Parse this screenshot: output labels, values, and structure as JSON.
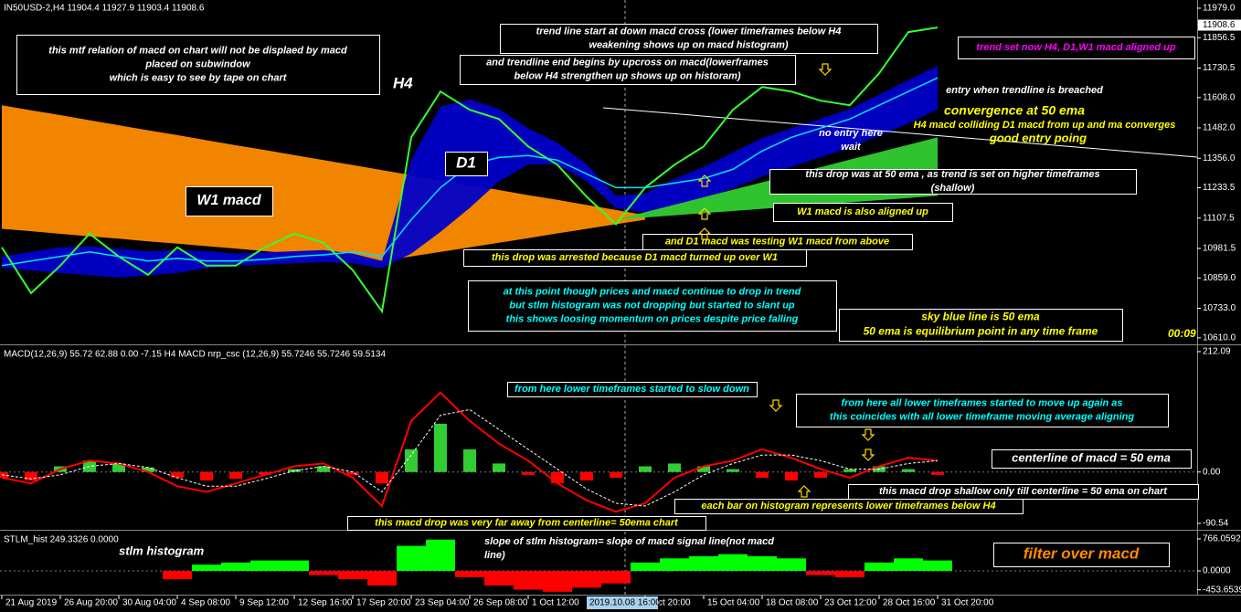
{
  "chart_data": [
    {
      "type": "line",
      "title": "IN50USD-2,H4  11904.4 11927.9 11903.4 11908.6",
      "ylim": [
        10587,
        12013
      ],
      "yticks": [
        {
          "value": 11979,
          "label": "11979.0"
        },
        11856.5,
        11730.5,
        {
          "value": 11608,
          "label": "11608.0"
        },
        {
          "value": 11482,
          "label": "11482.0"
        },
        {
          "value": 11356,
          "label": "11356.0"
        },
        11233.5,
        11107.5,
        10981.5,
        {
          "value": 10859,
          "label": "10859.0"
        },
        {
          "value": 10733,
          "label": "10733.0"
        },
        {
          "value": 10610,
          "label": "10610.0"
        }
      ],
      "last_price": 11908.6,
      "bands": [
        {
          "color": "#ff8c00",
          "upper": [
            11576,
            11555,
            11535,
            11514,
            11493,
            11472,
            11452,
            11431,
            11410,
            11390,
            11369,
            11348,
            11328,
            11307,
            11286,
            11265,
            11245,
            11224,
            11203,
            11183,
            11162,
            11141,
            11120,
            null,
            null,
            null,
            null,
            null,
            null,
            null,
            null,
            null,
            null
          ],
          "lower": [
            11063,
            11053,
            11042,
            11032,
            11022,
            11011,
            11001,
            10991,
            10981,
            10970,
            10960,
            10950,
            10939,
            10929,
            10948,
            10967,
            10986,
            11005,
            11024,
            11044,
            11063,
            11082,
            11101,
            null,
            null,
            null,
            null,
            null,
            null,
            null,
            null,
            null,
            null
          ]
        },
        {
          "color": "#0000c8",
          "upper": [
            10948,
            10967,
            10986,
            10990,
            10980,
            10970,
            10975,
            10970,
            10960,
            10965,
            10970,
            10975,
            10960,
            10930,
            11350,
            11570,
            11600,
            11560,
            11480,
            11420,
            11330,
            11200,
            11210,
            11270,
            11320,
            11380,
            11440,
            11480,
            11520,
            11560,
            11620,
            11680,
            11740
          ],
          "lower": [
            10900,
            10890,
            10880,
            10870,
            10860,
            10870,
            10880,
            10900,
            10910,
            10915,
            10920,
            10925,
            10920,
            10900,
            10960,
            11050,
            11150,
            11260,
            11330,
            11330,
            11260,
            11150,
            11130,
            11150,
            11190,
            11230,
            11280,
            11320,
            11360,
            11400,
            11450,
            11500,
            11560
          ]
        },
        {
          "color": "#32cd32",
          "upper": [
            null,
            null,
            null,
            null,
            null,
            null,
            null,
            null,
            null,
            null,
            null,
            null,
            null,
            null,
            null,
            null,
            null,
            null,
            null,
            null,
            null,
            11101,
            11132,
            11163,
            11194,
            11225,
            11256,
            11288,
            11319,
            11350,
            11381,
            11412,
            11443
          ],
          "lower": [
            null,
            null,
            null,
            null,
            null,
            null,
            null,
            null,
            null,
            null,
            null,
            null,
            null,
            null,
            null,
            null,
            null,
            null,
            null,
            null,
            null,
            11101,
            11110,
            11119,
            11128,
            11137,
            11146,
            11155,
            11164,
            11173,
            11182,
            11191,
            11200
          ]
        }
      ],
      "series": [
        {
          "color": "#33ff33",
          "values": [
            10986,
            10796,
            10910,
            11043,
            10948,
            10872,
            10986,
            10910,
            10910,
            10986,
            11043,
            11005,
            10891,
            10720,
            11443,
            11633,
            11557,
            11519,
            11405,
            11329,
            11196,
            11082,
            11234,
            11329,
            11405,
            11557,
            11652,
            11633,
            11595,
            11576,
            11709,
            11880,
            11899
          ]
        },
        {
          "color": "#00e5ee",
          "values": [
            10910,
            10929,
            10948,
            10967,
            10948,
            10929,
            10940,
            10929,
            10929,
            10936,
            10948,
            10955,
            10967,
            10948,
            11101,
            11234,
            11329,
            11359,
            11367,
            11348,
            11291,
            11234,
            11234,
            11253,
            11272,
            11310,
            11386,
            11443,
            11481,
            11519,
            11576,
            11633,
            11690
          ]
        }
      ],
      "clock": "00:09"
    },
    {
      "type": "macd",
      "title": "MACD(12,26,9) 55.72 62.88 0.00 -7.15  H4 MACD nrp_csc (12,26,9) 55.7246 55.7246 59.5134",
      "ylim": [
        -98.6,
        221.7
      ],
      "yticks": [
        212.09,
        {
          "value": 0,
          "label": "0.00"
        },
        -90.54
      ],
      "histogram": {
        "colors": {
          "up": "#32cd32",
          "down": "#ff0000"
        },
        "values": [
          -10,
          -15,
          10,
          20,
          15,
          8,
          -10,
          -15,
          -12,
          -5,
          5,
          10,
          -5,
          -20,
          40,
          85,
          40,
          15,
          -5,
          -20,
          -15,
          -10,
          10,
          15,
          10,
          5,
          -10,
          -15,
          -10,
          5,
          10,
          5,
          -5
        ]
      },
      "series": [
        {
          "color": "#ff0000",
          "values": [
            -10,
            -20,
            5,
            20,
            15,
            0,
            -25,
            -35,
            -20,
            -5,
            10,
            15,
            -10,
            -60,
            90,
            140,
            90,
            50,
            20,
            -20,
            -50,
            -70,
            -55,
            -10,
            10,
            20,
            40,
            25,
            5,
            -10,
            10,
            25,
            20
          ]
        },
        {
          "color": "#ffffff",
          "values": [
            -5,
            -12,
            -5,
            10,
            15,
            8,
            -10,
            -25,
            -25,
            -12,
            2,
            10,
            0,
            -35,
            30,
            100,
            110,
            75,
            40,
            5,
            -30,
            -55,
            -60,
            -35,
            -5,
            15,
            30,
            30,
            20,
            5,
            5,
            15,
            20
          ]
        }
      ]
    },
    {
      "type": "bar",
      "title": "STLM_hist 249.3326 0.0000",
      "ylim": [
        -547,
        941
      ],
      "yticks": [
        766.0592,
        {
          "value": 0,
          "label": "0.0000"
        },
        -453.6539
      ],
      "colors": {
        "up": "#00ff00",
        "down": "#ff0000"
      },
      "categories": [
        "21 Aug 2019",
        null,
        "26 Aug 20:00",
        null,
        "30 Aug 04:00",
        null,
        "4 Sep 08:00",
        null,
        "9 Sep 12:00",
        null,
        "12 Sep 16:00",
        null,
        "17 Sep 20:00",
        null,
        "23 Sep 04:00",
        null,
        "26 Sep 08:00",
        null,
        "1 Oct 12:00",
        null,
        "2019.10.08 16:00",
        null,
        "ct 20:00",
        null,
        "15 Oct 04:00",
        null,
        "18 Oct 08:00",
        null,
        "23 Oct 12:00",
        null,
        "28 Oct 16:00",
        null,
        "31 Oct 20:00"
      ],
      "values": [
        null,
        null,
        null,
        null,
        null,
        null,
        -200,
        150,
        200,
        250,
        250,
        -100,
        -200,
        -350,
        600,
        750,
        -150,
        -350,
        -450,
        -500,
        -400,
        -300,
        200,
        300,
        350,
        400,
        350,
        300,
        -100,
        -150,
        200,
        300,
        250
      ]
    }
  ],
  "annotations": [
    {
      "color": "#ffffff",
      "lines": [
        "this mtf relation of macd on chart will not be displaed by macd",
        "placed on subwindow",
        "which is easy to see by tape on chart"
      ]
    },
    {
      "color": "#ffffff",
      "lines": [
        "H4"
      ]
    },
    {
      "color": "#ffffff",
      "lines": [
        "D1"
      ]
    },
    {
      "color": "#ffffff",
      "lines": [
        "W1  macd"
      ]
    },
    {
      "color": "#ffffff",
      "lines": [
        "trend line start at down macd cross (lower timeframes  below H4",
        "weakening shows up on macd histogram)"
      ]
    },
    {
      "color": "#ffffff",
      "lines": [
        "and trendline end begins by upcross on macd(lowerframes",
        "below H4 strengthen up shows up on historam)"
      ]
    },
    {
      "color": "#ff00ff",
      "lines": [
        "trend set now H4, D1,W1 macd aligned up"
      ]
    },
    {
      "color": "#ffffff",
      "lines": [
        "entry when trendline is breached"
      ]
    },
    {
      "color": "#ffff00",
      "lines": [
        "convergence at 50 ema"
      ]
    },
    {
      "color": "#ffff00",
      "lines": [
        "H4 macd colliding D1 macd from up and ma converges"
      ]
    },
    {
      "color": "#ffff00",
      "lines": [
        "good entry poing"
      ]
    },
    {
      "color": "#ffffff",
      "lines": [
        "no entry here",
        "wait"
      ]
    },
    {
      "color": "#ffffff",
      "lines": [
        "this drop was at 50 ema , as trend is set on higher timeframes",
        "(shallow)"
      ]
    },
    {
      "color": "#ffff00",
      "lines": [
        "W1 macd is also aligned up"
      ]
    },
    {
      "color": "#ffff00",
      "lines": [
        "and D1 macd was testing W1 macd  from above"
      ]
    },
    {
      "color": "#ffff00",
      "lines": [
        "this drop was arrested because D1 macd turned up over W1"
      ]
    },
    {
      "color": "#00ffff",
      "lines": [
        "at this point though prices and macd continue to drop in trend",
        "but stlm histogram was not dropping but started to slant up",
        "this shows loosing momentum on prices despite price falling"
      ]
    },
    {
      "color": "#ffff00",
      "lines": [
        "sky blue line is 50 ema",
        "50 ema is equilibrium point in any time frame"
      ]
    },
    {
      "color": "#ffff00",
      "lines": [
        "00:09"
      ]
    },
    {
      "color": "#00ffff",
      "lines": [
        "from here lower timeframes started to slow down"
      ]
    },
    {
      "color": "#00ffff",
      "lines": [
        "from here all lower timeframes started to move up again as",
        "this coincides with all lower timeframe moving average aligning"
      ]
    },
    {
      "color": "#ffffff",
      "lines": [
        "centerline of macd = 50 ema"
      ]
    },
    {
      "color": "#ffffff",
      "lines": [
        "this macd drop shallow only till centerline = 50 ema on chart"
      ]
    },
    {
      "color": "#ffff00",
      "lines": [
        "each bar on histogram represents lower timeframes below H4"
      ]
    },
    {
      "color": "#ffff00",
      "lines": [
        "this macd drop was very far away from centerline= 50ema chart"
      ]
    },
    {
      "color": "#ffffff",
      "lines": [
        "stlm histogram"
      ]
    },
    {
      "color": "#ffffff",
      "lines": [
        "slope of stlm histogram= slope of macd signal line(not macd",
        "line)"
      ]
    },
    {
      "color": "#ff8c00",
      "lines": [
        "filter over macd"
      ]
    }
  ]
}
